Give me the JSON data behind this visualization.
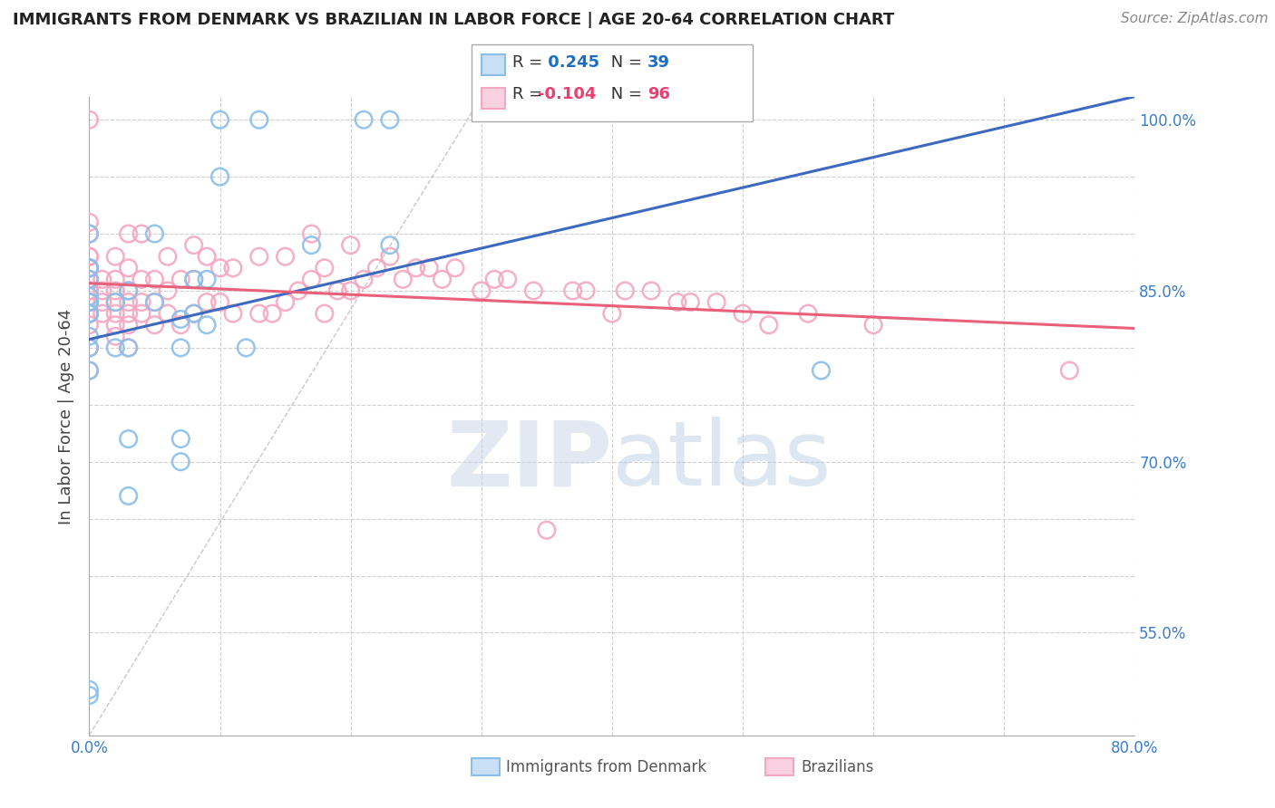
{
  "title": "IMMIGRANTS FROM DENMARK VS BRAZILIAN IN LABOR FORCE | AGE 20-64 CORRELATION CHART",
  "source": "Source: ZipAtlas.com",
  "ylabel": "In Labor Force | Age 20-64",
  "xlim": [
    0.0,
    0.8
  ],
  "ylim": [
    0.46,
    1.02
  ],
  "denmark_color": "#8bbfea",
  "brazil_color": "#f4a8c0",
  "denmark_R": 0.245,
  "denmark_N": 39,
  "brazil_R": -0.104,
  "brazil_N": 96,
  "denmark_line_color": "#3d6abf",
  "brazil_line_color": "#e8607a",
  "legend_R_color": "#1a6fc4",
  "legend_R_color2": "#e84070",
  "background_color": "#ffffff",
  "denmark_x": [
    0.0,
    0.0,
    0.0,
    0.0,
    0.0,
    0.0,
    0.0,
    0.0,
    0.0,
    0.0,
    0.02,
    0.02,
    0.03,
    0.03,
    0.03,
    0.03,
    0.05,
    0.05,
    0.07,
    0.07,
    0.07,
    0.07,
    0.08,
    0.08,
    0.09,
    0.09,
    0.1,
    0.1,
    0.12,
    0.13,
    0.17,
    0.21,
    0.23,
    0.23,
    0.56,
    0.0,
    0.0,
    0.0,
    0.0
  ],
  "denmark_y": [
    0.5,
    0.495,
    0.8,
    0.83,
    0.84,
    0.87,
    0.87,
    0.9,
    0.84,
    0.86,
    0.8,
    0.84,
    0.67,
    0.72,
    0.8,
    0.85,
    0.84,
    0.9,
    0.7,
    0.72,
    0.825,
    0.8,
    0.83,
    0.86,
    0.82,
    0.86,
    0.95,
    1.0,
    0.8,
    1.0,
    0.89,
    1.0,
    1.0,
    0.89,
    0.78,
    0.78,
    0.81,
    0.83,
    0.845
  ],
  "brazil_x": [
    0.0,
    0.0,
    0.0,
    0.0,
    0.0,
    0.0,
    0.0,
    0.0,
    0.0,
    0.0,
    0.0,
    0.0,
    0.0,
    0.0,
    0.0,
    0.0,
    0.0,
    0.0,
    0.01,
    0.01,
    0.01,
    0.01,
    0.02,
    0.02,
    0.02,
    0.02,
    0.02,
    0.02,
    0.02,
    0.03,
    0.03,
    0.03,
    0.03,
    0.03,
    0.03,
    0.03,
    0.04,
    0.04,
    0.04,
    0.04,
    0.05,
    0.05,
    0.05,
    0.06,
    0.06,
    0.06,
    0.07,
    0.07,
    0.08,
    0.08,
    0.08,
    0.09,
    0.09,
    0.1,
    0.1,
    0.11,
    0.11,
    0.13,
    0.13,
    0.14,
    0.15,
    0.15,
    0.16,
    0.17,
    0.17,
    0.18,
    0.18,
    0.19,
    0.2,
    0.2,
    0.21,
    0.22,
    0.23,
    0.24,
    0.25,
    0.26,
    0.27,
    0.28,
    0.3,
    0.31,
    0.32,
    0.34,
    0.35,
    0.37,
    0.38,
    0.4,
    0.41,
    0.43,
    0.45,
    0.46,
    0.48,
    0.5,
    0.52,
    0.55,
    0.6,
    0.75
  ],
  "brazil_y": [
    0.78,
    0.8,
    0.82,
    0.83,
    0.83,
    0.84,
    0.84,
    0.85,
    0.85,
    0.86,
    0.86,
    0.87,
    0.87,
    0.88,
    0.88,
    0.9,
    0.91,
    1.0,
    0.83,
    0.84,
    0.85,
    0.86,
    0.81,
    0.82,
    0.83,
    0.84,
    0.85,
    0.86,
    0.88,
    0.8,
    0.82,
    0.83,
    0.84,
    0.85,
    0.87,
    0.9,
    0.83,
    0.84,
    0.86,
    0.9,
    0.82,
    0.84,
    0.86,
    0.83,
    0.85,
    0.88,
    0.82,
    0.86,
    0.83,
    0.86,
    0.89,
    0.84,
    0.88,
    0.84,
    0.87,
    0.83,
    0.87,
    0.83,
    0.88,
    0.83,
    0.84,
    0.88,
    0.85,
    0.86,
    0.9,
    0.83,
    0.87,
    0.85,
    0.85,
    0.89,
    0.86,
    0.87,
    0.88,
    0.86,
    0.87,
    0.87,
    0.86,
    0.87,
    0.85,
    0.86,
    0.86,
    0.85,
    0.64,
    0.85,
    0.85,
    0.83,
    0.85,
    0.85,
    0.84,
    0.84,
    0.84,
    0.83,
    0.82,
    0.83,
    0.82,
    0.78
  ]
}
